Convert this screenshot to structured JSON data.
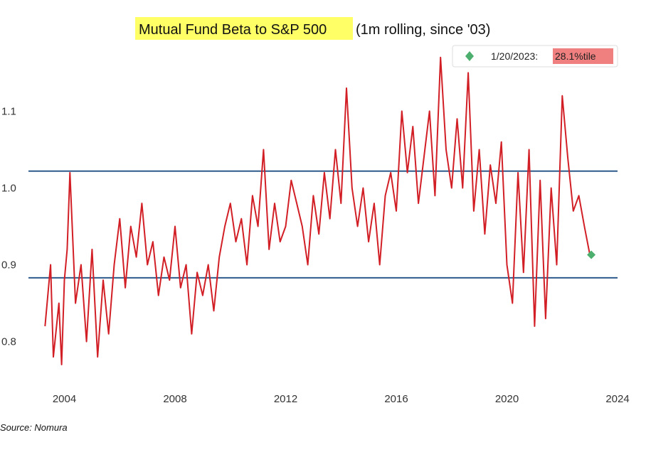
{
  "chart_data": {
    "type": "line",
    "title": "Mutual Fund Beta to S&P 500",
    "title_suffix": "(1m rolling, since '03)",
    "title_highlight_color": "#ffff66",
    "xlabel": "",
    "ylabel": "",
    "x_ticks": [
      "2004",
      "2008",
      "2012",
      "2016",
      "2020",
      "2024"
    ],
    "y_ticks": [
      "0.8",
      "0.9",
      "1.0",
      "1.1"
    ],
    "xlim": [
      2002.7,
      2024.0
    ],
    "ylim": [
      0.745,
      1.18
    ],
    "grid": false,
    "line_color": "#d21f26",
    "reference_lines": [
      {
        "y": 1.022,
        "color": "#2c5a8a"
      },
      {
        "y": 0.883,
        "color": "#2c5a8a"
      }
    ],
    "marker": {
      "x": 2023.05,
      "y": 0.913,
      "color": "#4caf6e"
    },
    "legend": {
      "position": "top-right",
      "date": "1/20/2023:",
      "value": "28.1%tile",
      "value_highlight_color": "#f07f7f"
    },
    "series": [
      {
        "values_note": "",
        "x": [
          2003.3,
          2003.5,
          2003.6,
          2003.8,
          2003.9,
          2004.0,
          2004.1,
          2004.2,
          2004.4,
          2004.6,
          2004.8,
          2005.0,
          2005.2,
          2005.4,
          2005.6,
          2005.8,
          2006.0,
          2006.2,
          2006.4,
          2006.6,
          2006.8,
          2007.0,
          2007.2,
          2007.4,
          2007.6,
          2007.8,
          2008.0,
          2008.2,
          2008.4,
          2008.6,
          2008.8,
          2009.0,
          2009.2,
          2009.4,
          2009.6,
          2009.8,
          2010.0,
          2010.2,
          2010.4,
          2010.6,
          2010.8,
          2011.0,
          2011.2,
          2011.4,
          2011.6,
          2011.8,
          2012.0,
          2012.2,
          2012.4,
          2012.6,
          2012.8,
          2013.0,
          2013.2,
          2013.4,
          2013.6,
          2013.8,
          2014.0,
          2014.2,
          2014.4,
          2014.6,
          2014.8,
          2015.0,
          2015.2,
          2015.4,
          2015.6,
          2015.8,
          2016.0,
          2016.2,
          2016.4,
          2016.6,
          2016.8,
          2017.0,
          2017.2,
          2017.4,
          2017.6,
          2017.8,
          2018.0,
          2018.2,
          2018.4,
          2018.6,
          2018.8,
          2019.0,
          2019.2,
          2019.4,
          2019.6,
          2019.8,
          2020.0,
          2020.2,
          2020.4,
          2020.6,
          2020.8,
          2021.0,
          2021.2,
          2021.4,
          2021.6,
          2021.8,
          2022.0,
          2022.2,
          2022.4,
          2022.6,
          2022.8,
          2023.0
        ],
        "y": [
          0.82,
          0.9,
          0.78,
          0.85,
          0.77,
          0.88,
          0.92,
          1.02,
          0.85,
          0.9,
          0.8,
          0.92,
          0.78,
          0.88,
          0.81,
          0.9,
          0.96,
          0.87,
          0.95,
          0.91,
          0.98,
          0.9,
          0.93,
          0.86,
          0.91,
          0.88,
          0.95,
          0.87,
          0.9,
          0.81,
          0.89,
          0.86,
          0.9,
          0.84,
          0.91,
          0.95,
          0.98,
          0.93,
          0.96,
          0.9,
          0.99,
          0.95,
          1.05,
          0.92,
          0.98,
          0.93,
          0.95,
          1.01,
          0.98,
          0.95,
          0.9,
          0.99,
          0.94,
          1.02,
          0.96,
          1.05,
          0.98,
          1.13,
          1.0,
          0.95,
          1.0,
          0.93,
          0.98,
          0.9,
          0.99,
          1.02,
          0.97,
          1.1,
          1.02,
          1.08,
          0.98,
          1.04,
          1.1,
          0.99,
          1.17,
          1.05,
          1.0,
          1.09,
          1.0,
          1.15,
          0.97,
          1.05,
          0.94,
          1.03,
          0.98,
          1.06,
          0.9,
          0.85,
          1.02,
          0.89,
          1.05,
          0.82,
          1.01,
          0.83,
          1.0,
          0.9,
          1.12,
          1.04,
          0.97,
          0.99,
          0.95,
          0.913
        ]
      }
    ]
  },
  "source_note": "Source: Nomura"
}
